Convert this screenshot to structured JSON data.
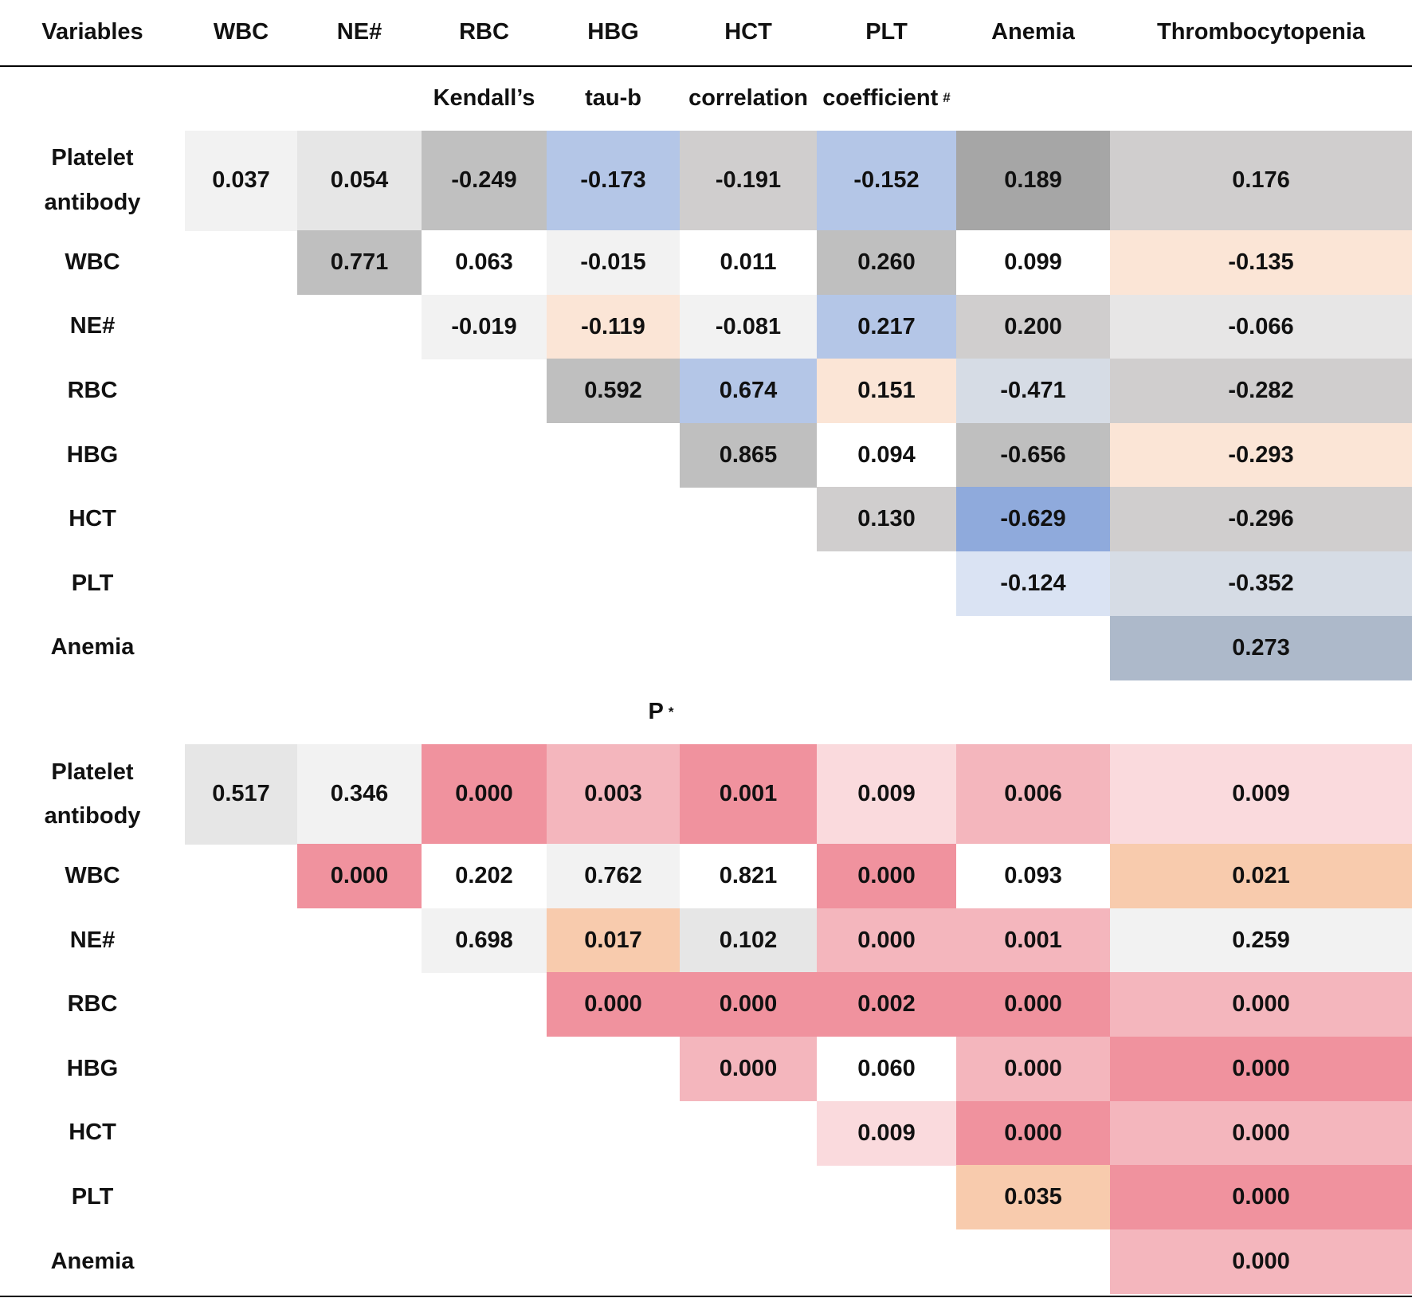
{
  "header": {
    "columns": [
      "Variables",
      "WBC",
      "NE#",
      "RBC",
      "HBG",
      "HCT",
      "PLT",
      "Anemia",
      "Thrombocytopenia"
    ]
  },
  "sections": [
    {
      "title_words": [
        "Kendall’s",
        "tau-b",
        "correlation",
        "coefficient"
      ],
      "title_mark": "#",
      "rows": [
        {
          "label": "Platelet antibody",
          "cells": [
            "0.037",
            "0.054",
            "-0.249",
            "-0.173",
            "-0.191",
            "-0.152",
            "0.189",
            "0.176"
          ],
          "colors": [
            "#f2f2f2",
            "#e6e6e6",
            "#c0c0c0",
            "#b4c6e7",
            "#d0cece",
            "#b4c6e7",
            "#a6a6a6",
            "#d0cece"
          ]
        },
        {
          "label": "WBC",
          "cells": [
            null,
            "0.771",
            "0.063",
            "-0.015",
            "0.011",
            "0.260",
            "0.099",
            "-0.135"
          ],
          "colors": [
            null,
            "#bfbfbf",
            "#ffffff",
            "#f2f2f2",
            "#ffffff",
            "#bfbfbf",
            "#ffffff",
            "#fbe5d6"
          ]
        },
        {
          "label": "NE#",
          "cells": [
            null,
            null,
            "-0.019",
            "-0.119",
            "-0.081",
            "0.217",
            "0.200",
            "-0.066"
          ],
          "colors": [
            null,
            null,
            "#f2f2f2",
            "#fbe5d6",
            "#f2f2f2",
            "#b4c6e7",
            "#d0cece",
            "#e7e6e6"
          ]
        },
        {
          "label": "RBC",
          "cells": [
            null,
            null,
            null,
            "0.592",
            "0.674",
            "0.151",
            "-0.471",
            "-0.282"
          ],
          "colors": [
            null,
            null,
            null,
            "#bfbfbf",
            "#b4c6e7",
            "#fbe5d6",
            "#d6dce5",
            "#d0cece"
          ]
        },
        {
          "label": "HBG",
          "cells": [
            null,
            null,
            null,
            null,
            "0.865",
            "0.094",
            "-0.656",
            "-0.293"
          ],
          "colors": [
            null,
            null,
            null,
            null,
            "#bfbfbf",
            "#ffffff",
            "#bfbfbf",
            "#fbe5d6"
          ]
        },
        {
          "label": "HCT",
          "cells": [
            null,
            null,
            null,
            null,
            null,
            "0.130",
            "-0.629",
            "-0.296"
          ],
          "colors": [
            null,
            null,
            null,
            null,
            null,
            "#d0cece",
            "#8faadc",
            "#d0cece"
          ]
        },
        {
          "label": "PLT",
          "cells": [
            null,
            null,
            null,
            null,
            null,
            null,
            "-0.124",
            "-0.352"
          ],
          "colors": [
            null,
            null,
            null,
            null,
            null,
            null,
            "#dae3f3",
            "#d6dce5"
          ]
        },
        {
          "label": "Anemia",
          "cells": [
            null,
            null,
            null,
            null,
            null,
            null,
            null,
            "0.273"
          ],
          "colors": [
            null,
            null,
            null,
            null,
            null,
            null,
            null,
            "#adb9ca"
          ]
        }
      ]
    },
    {
      "title_words": [
        "P"
      ],
      "title_mark": "*",
      "rows": [
        {
          "label": "Platelet antibody",
          "cells": [
            "0.517",
            "0.346",
            "0.000",
            "0.003",
            "0.001",
            "0.009",
            "0.006",
            "0.009"
          ],
          "colors": [
            "#e6e6e6",
            "#f2f2f2",
            "#f0929e",
            "#f4b6bd",
            "#f0929e",
            "#fadadd",
            "#f4b6bd",
            "#fadadd"
          ]
        },
        {
          "label": "WBC",
          "cells": [
            null,
            "0.000",
            "0.202",
            "0.762",
            "0.821",
            "0.000",
            "0.093",
            "0.021"
          ],
          "colors": [
            null,
            "#f0929e",
            "#ffffff",
            "#f2f2f2",
            "#ffffff",
            "#f0929e",
            "#ffffff",
            "#f8cbad"
          ]
        },
        {
          "label": "NE#",
          "cells": [
            null,
            null,
            "0.698",
            "0.017",
            "0.102",
            "0.000",
            "0.001",
            "0.259"
          ],
          "colors": [
            null,
            null,
            "#f2f2f2",
            "#f8cbad",
            "#e6e6e6",
            "#f4b6bd",
            "#f4b6bd",
            "#f2f2f2"
          ]
        },
        {
          "label": "RBC",
          "cells": [
            null,
            null,
            null,
            "0.000",
            "0.000",
            "0.002",
            "0.000",
            "0.000"
          ],
          "colors": [
            null,
            null,
            null,
            "#f0929e",
            "#f0929e",
            "#f0929e",
            "#f0929e",
            "#f4b6bd"
          ]
        },
        {
          "label": "HBG",
          "cells": [
            null,
            null,
            null,
            null,
            "0.000",
            "0.060",
            "0.000",
            "0.000"
          ],
          "colors": [
            null,
            null,
            null,
            null,
            "#f4b6bd",
            "#ffffff",
            "#f4b6bd",
            "#f0929e"
          ]
        },
        {
          "label": "HCT",
          "cells": [
            null,
            null,
            null,
            null,
            null,
            "0.009",
            "0.000",
            "0.000"
          ],
          "colors": [
            null,
            null,
            null,
            null,
            null,
            "#fadadd",
            "#f0929e",
            "#f4b6bd"
          ]
        },
        {
          "label": "PLT",
          "cells": [
            null,
            null,
            null,
            null,
            null,
            null,
            "0.035",
            "0.000"
          ],
          "colors": [
            null,
            null,
            null,
            null,
            null,
            null,
            "#f8cbad",
            "#f0929e"
          ]
        },
        {
          "label": "Anemia",
          "cells": [
            null,
            null,
            null,
            null,
            null,
            null,
            null,
            "0.000"
          ],
          "colors": [
            null,
            null,
            null,
            null,
            null,
            null,
            null,
            "#f4b6bd"
          ]
        }
      ]
    }
  ]
}
